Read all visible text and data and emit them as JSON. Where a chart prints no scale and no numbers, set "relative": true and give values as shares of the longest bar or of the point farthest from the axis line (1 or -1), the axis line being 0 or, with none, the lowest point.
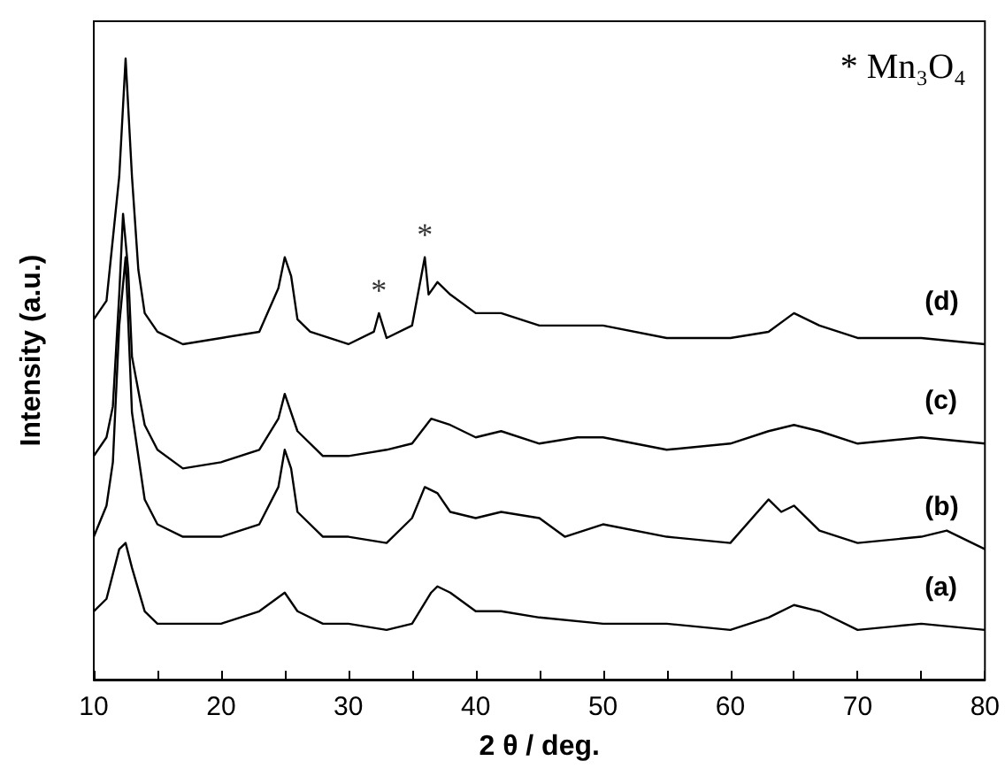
{
  "chart_data": {
    "type": "line",
    "relative": true,
    "xlabel": "2 θ / deg.",
    "ylabel": "Intensity (a.u.)",
    "xlim": [
      10,
      80
    ],
    "xticks": [
      10,
      {
        "value": 15,
        "label": null
      },
      20,
      {
        "value": 25,
        "label": null
      },
      30,
      {
        "value": 35,
        "label": null
      },
      40,
      {
        "value": 45,
        "label": null
      },
      50,
      {
        "value": 55,
        "label": null
      },
      60,
      {
        "value": 65,
        "label": null
      },
      70,
      {
        "value": 75,
        "label": null
      },
      80
    ],
    "tick_labels": "x",
    "marker": "none",
    "line_style": "solid",
    "annotations": [
      "* Mn₃O₄",
      {
        "text": "*",
        "x": 32.4,
        "y": 0.59
      },
      {
        "text": "*",
        "x": 36,
        "y": 0.68
      }
    ],
    "series": [
      {
        "name": "(d)",
        "color": "#000000",
        "x": [
          10,
          11,
          12,
          12.5,
          13,
          13.5,
          14,
          15,
          17,
          20,
          23,
          24.5,
          25,
          25.5,
          26,
          27,
          30,
          32,
          32.4,
          33,
          35,
          36,
          36.3,
          37,
          38,
          40,
          42,
          45,
          50,
          55,
          60,
          63,
          65,
          67,
          70,
          75,
          80
        ],
        "values": [
          0.58,
          0.61,
          0.81,
          1.0,
          0.81,
          0.66,
          0.59,
          0.56,
          0.54,
          0.55,
          0.56,
          0.63,
          0.68,
          0.65,
          0.58,
          0.56,
          0.54,
          0.56,
          0.59,
          0.55,
          0.57,
          0.68,
          0.62,
          0.64,
          0.62,
          0.59,
          0.59,
          0.57,
          0.57,
          0.55,
          0.55,
          0.56,
          0.59,
          0.57,
          0.55,
          0.55,
          0.54
        ]
      },
      {
        "name": "(c)",
        "color": "#000000",
        "x": [
          10,
          11,
          11.5,
          12,
          12.3,
          12.7,
          13,
          14,
          15,
          17,
          20,
          23,
          24.5,
          25,
          26,
          28,
          30,
          33,
          35,
          36.5,
          38,
          40,
          42,
          45,
          48,
          50,
          55,
          60,
          63,
          65,
          67,
          70,
          75,
          80
        ],
        "values": [
          0.36,
          0.39,
          0.44,
          0.62,
          0.75,
          0.66,
          0.52,
          0.41,
          0.37,
          0.34,
          0.35,
          0.37,
          0.42,
          0.46,
          0.4,
          0.36,
          0.36,
          0.37,
          0.38,
          0.42,
          0.41,
          0.39,
          0.4,
          0.38,
          0.39,
          0.39,
          0.37,
          0.38,
          0.4,
          0.41,
          0.4,
          0.38,
          0.39,
          0.38
        ]
      },
      {
        "name": "(b)",
        "color": "#000000",
        "x": [
          10,
          11,
          11.5,
          12,
          12.5,
          13,
          14,
          15,
          17,
          20,
          23,
          24.5,
          25,
          25.5,
          26,
          28,
          30,
          33,
          35,
          36,
          37,
          38,
          40,
          42,
          45,
          47,
          50,
          55,
          60,
          63,
          64,
          65,
          67,
          70,
          75,
          77,
          80
        ],
        "values": [
          0.23,
          0.28,
          0.35,
          0.57,
          0.68,
          0.43,
          0.29,
          0.25,
          0.23,
          0.23,
          0.25,
          0.31,
          0.37,
          0.34,
          0.27,
          0.23,
          0.23,
          0.22,
          0.26,
          0.31,
          0.3,
          0.27,
          0.26,
          0.27,
          0.26,
          0.23,
          0.25,
          0.23,
          0.22,
          0.29,
          0.27,
          0.28,
          0.24,
          0.22,
          0.23,
          0.24,
          0.21
        ]
      },
      {
        "name": "(a)",
        "color": "#000000",
        "x": [
          10,
          11,
          12,
          12.5,
          13,
          14,
          15,
          20,
          23,
          25,
          26,
          28,
          30,
          33,
          35,
          36.5,
          37,
          38,
          40,
          42,
          45,
          50,
          55,
          60,
          63,
          65,
          67,
          70,
          75,
          80
        ],
        "values": [
          0.11,
          0.13,
          0.21,
          0.22,
          0.18,
          0.11,
          0.09,
          0.09,
          0.11,
          0.14,
          0.11,
          0.09,
          0.09,
          0.08,
          0.09,
          0.14,
          0.15,
          0.14,
          0.11,
          0.11,
          0.1,
          0.09,
          0.09,
          0.08,
          0.1,
          0.12,
          0.11,
          0.08,
          0.09,
          0.08
        ]
      }
    ]
  }
}
